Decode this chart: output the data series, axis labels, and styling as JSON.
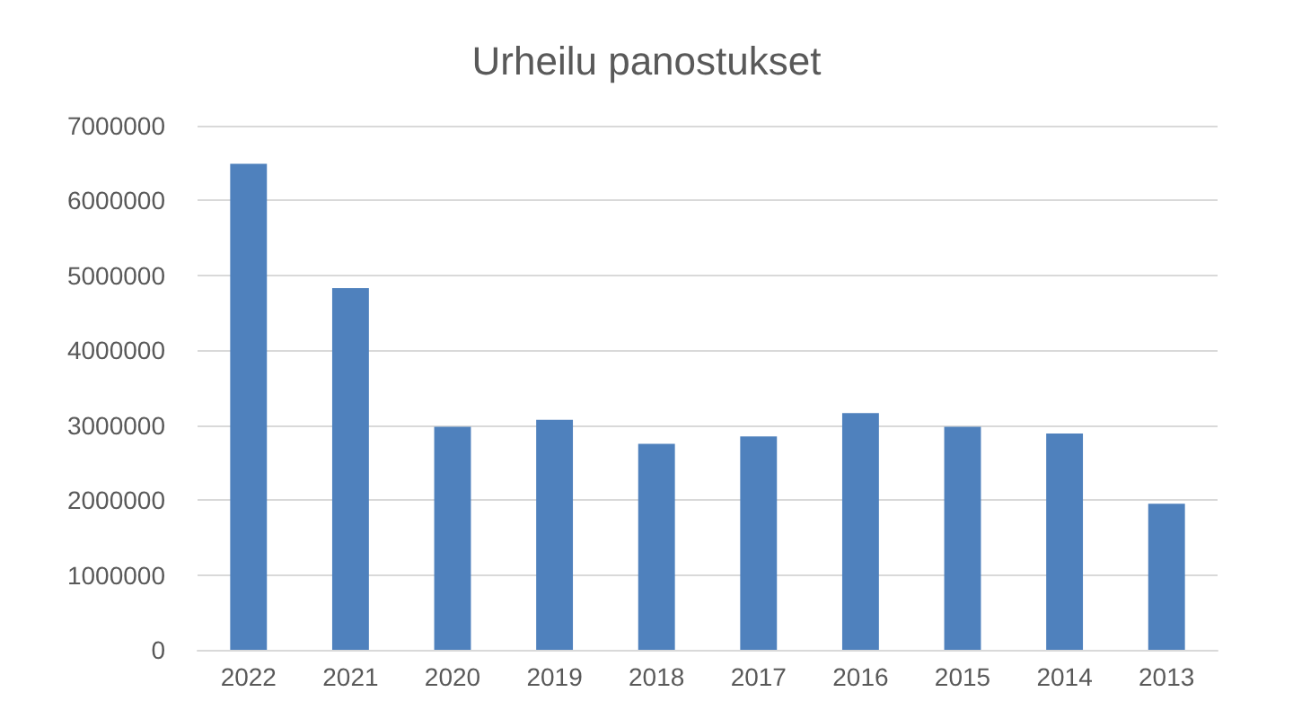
{
  "chart_data": {
    "type": "bar",
    "title": "Urheilu panostukset",
    "categories": [
      "2022",
      "2021",
      "2020",
      "2019",
      "2018",
      "2017",
      "2016",
      "2015",
      "2014",
      "2013"
    ],
    "values": [
      6490000,
      4830000,
      2980000,
      3070000,
      2750000,
      2850000,
      3160000,
      2980000,
      2890000,
      1950000
    ],
    "color": "#4f81bd",
    "ylim": [
      0,
      7000000
    ],
    "yticks": [
      0,
      1000000,
      2000000,
      3000000,
      4000000,
      5000000,
      6000000,
      7000000
    ],
    "grid": "y"
  }
}
